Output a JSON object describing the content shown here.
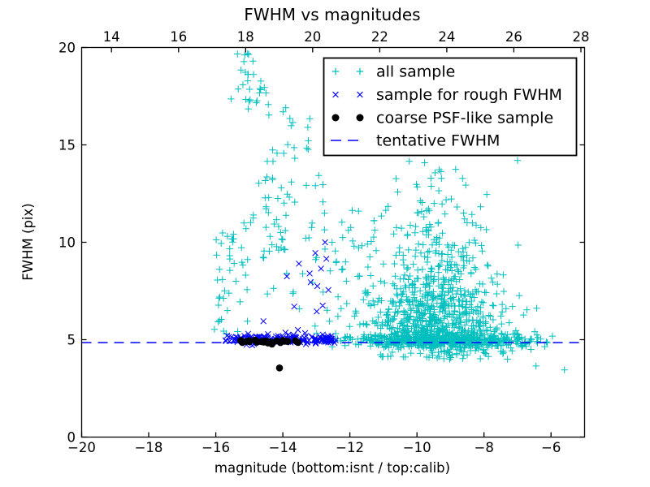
{
  "chart_data": {
    "type": "scatter",
    "title": "FWHM vs magnitudes",
    "xlabel": "magnitude (bottom:isnt / top:calib)",
    "ylabel": "FWHM (pix)",
    "grid": false,
    "legend_position": "upper right",
    "axes": {
      "bottom": {
        "min": -20,
        "max": -5,
        "ticks": [
          {
            "v": -20,
            "label": "−20"
          },
          {
            "v": -18,
            "label": "−18"
          },
          {
            "v": -16,
            "label": "−16"
          },
          {
            "v": -14,
            "label": "−14"
          },
          {
            "v": -12,
            "label": "−12"
          },
          {
            "v": -10,
            "label": "−10"
          },
          {
            "v": -8,
            "label": "−8"
          },
          {
            "v": -6,
            "label": "−6"
          }
        ]
      },
      "top": {
        "min": 13.11,
        "max": 28.11,
        "ticks": [
          {
            "v": 14,
            "label": "14"
          },
          {
            "v": 16,
            "label": "16"
          },
          {
            "v": 18,
            "label": "18"
          },
          {
            "v": 20,
            "label": "20"
          },
          {
            "v": 22,
            "label": "22"
          },
          {
            "v": 24,
            "label": "24"
          },
          {
            "v": 26,
            "label": "26"
          },
          {
            "v": 28,
            "label": "28"
          }
        ]
      },
      "left": {
        "min": 0,
        "max": 20,
        "ticks": [
          {
            "v": 0,
            "label": "0"
          },
          {
            "v": 5,
            "label": "5"
          },
          {
            "v": 10,
            "label": "10"
          },
          {
            "v": 15,
            "label": "15"
          },
          {
            "v": 20,
            "label": "20"
          }
        ]
      }
    },
    "colors": {
      "all_sample": "#00bfbf",
      "rough_fwhm": "#0000ff",
      "psf_sample": "#000000",
      "tentative_line": "#0000ff"
    },
    "tentative_fwhm": 4.85,
    "legend": [
      {
        "label": "all sample",
        "marker": "plus",
        "color": "all_sample"
      },
      {
        "label": "sample for rough FWHM",
        "marker": "x",
        "color": "rough_fwhm"
      },
      {
        "label": "coarse PSF-like sample",
        "marker": "dot",
        "color": "psf_sample"
      },
      {
        "label": "tentative FWHM",
        "marker": "dashes",
        "color": "tentative_line"
      }
    ],
    "seed": 7,
    "series": [
      {
        "name": "all sample",
        "marker": "plus",
        "color": "all_sample",
        "clusters": [
          {
            "kind": "box",
            "n": 36,
            "mag": [
              -16.05,
              -15.2
            ],
            "fwhm": [
              5.2,
              10.6
            ]
          },
          {
            "kind": "box",
            "n": 16,
            "mag": [
              -15.55,
              -14.85
            ],
            "fwhm": [
              17.3,
              19.7
            ]
          },
          {
            "kind": "box",
            "n": 14,
            "mag": [
              -15.15,
              -14.4
            ],
            "fwhm": [
              15.9,
              18.3
            ]
          },
          {
            "kind": "box",
            "n": 22,
            "mag": [
              -14.6,
              -12.9
            ],
            "fwhm": [
              13.2,
              17.0
            ]
          },
          {
            "kind": "box",
            "n": 50,
            "mag": [
              -15.35,
              -12.55
            ],
            "fwhm": [
              5.3,
              13.2
            ]
          },
          {
            "kind": "box",
            "n": 20,
            "mag": [
              -14.55,
              -13.85
            ],
            "fwhm": [
              9.5,
              13.4
            ]
          },
          {
            "kind": "box",
            "n": 40,
            "mag": [
              -12.6,
              -11.0
            ],
            "fwhm": [
              5.3,
              12.0
            ]
          },
          {
            "kind": "cloud",
            "n": 760,
            "magMean": -9.4,
            "magSd": 1.15,
            "fwhmMin": 5.05,
            "fwhmTau": 2.2,
            "fwhmMax": 14.5,
            "shrink": 0.5
          },
          {
            "kind": "hband",
            "n": 520,
            "mag": [
              -12.6,
              -6.55
            ],
            "gauss": {
              "mean": -9.3,
              "sd": 1.45
            },
            "fwhm": {
              "mean": 4.92,
              "sd": 0.17
            }
          },
          {
            "kind": "hband",
            "n": 55,
            "mag": [
              -11.5,
              -7.4
            ],
            "gauss": {
              "mean": -9.2,
              "sd": 1.0
            },
            "fwhm": {
              "mean": 4.3,
              "sd": 0.2
            }
          },
          {
            "kind": "hband",
            "n": 20,
            "mag": [
              -7.6,
              -5.9
            ],
            "fwhm": {
              "mean": 4.9,
              "sd": 0.28
            }
          },
          {
            "kind": "points",
            "pts": [
              [
                -7.0,
                14.2
              ],
              [
                -7.3,
                4.0
              ],
              [
                -6.6,
                4.5
              ],
              [
                -6.45,
                3.65
              ],
              [
                -5.6,
                3.45
              ]
            ]
          }
        ]
      },
      {
        "name": "sample for rough FWHM",
        "marker": "x",
        "color": "rough_fwhm",
        "clusters": [
          {
            "kind": "hband",
            "n": 115,
            "mag": [
              -15.72,
              -13.05
            ],
            "fwhm": {
              "mean": 5.03,
              "sd": 0.12
            }
          },
          {
            "kind": "hband",
            "n": 45,
            "mag": [
              -13.05,
              -12.42
            ],
            "fwhm": {
              "mean": 5.0,
              "sd": 0.1
            }
          },
          {
            "kind": "points",
            "pts": [
              [
                -12.74,
                10.0
              ],
              [
                -13.03,
                9.45
              ],
              [
                -12.7,
                9.15
              ],
              [
                -13.52,
                8.9
              ],
              [
                -12.86,
                8.65
              ],
              [
                -13.2,
                8.4
              ],
              [
                -13.88,
                8.25
              ],
              [
                -13.17,
                7.95
              ],
              [
                -12.97,
                7.75
              ],
              [
                -12.64,
                7.55
              ],
              [
                -13.66,
                6.7
              ],
              [
                -12.81,
                6.75
              ],
              [
                -12.99,
                6.45
              ],
              [
                -14.58,
                5.95
              ],
              [
                -13.55,
                5.5
              ]
            ]
          }
        ]
      },
      {
        "name": "coarse PSF-like sample",
        "marker": "dot",
        "color": "psf_sample",
        "clusters": [
          {
            "kind": "hband",
            "n": 26,
            "mag": [
              -15.3,
              -13.38
            ],
            "fwhm": {
              "mean": 4.89,
              "sd": 0.04
            }
          },
          {
            "kind": "points",
            "pts": [
              [
                -14.1,
                3.55
              ]
            ]
          }
        ]
      }
    ]
  }
}
